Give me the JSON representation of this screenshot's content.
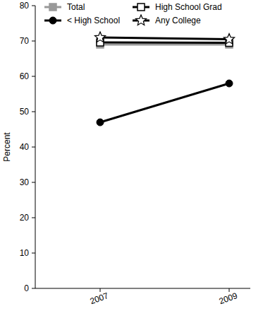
{
  "chart_data": {
    "type": "line",
    "y_label": "Percent",
    "categories": [
      "2007",
      "2009"
    ],
    "ylim": [
      0,
      80
    ],
    "yticks": [
      0,
      10,
      20,
      30,
      40,
      50,
      60,
      70,
      80
    ],
    "grid": false,
    "legend": "top",
    "series": [
      {
        "name": "Total",
        "color": "#999999",
        "marker": "square",
        "values": [
          69,
          69
        ]
      },
      {
        "name": "High School Grad",
        "color": "#000000",
        "marker": "square-open",
        "values": [
          69.6,
          69.5
        ]
      },
      {
        "name": "< High School",
        "color": "#000000",
        "marker": "circle",
        "values": [
          47,
          58
        ]
      },
      {
        "name": "Any College",
        "color": "#000000",
        "marker": "star",
        "values": [
          71,
          70.5
        ]
      }
    ]
  }
}
